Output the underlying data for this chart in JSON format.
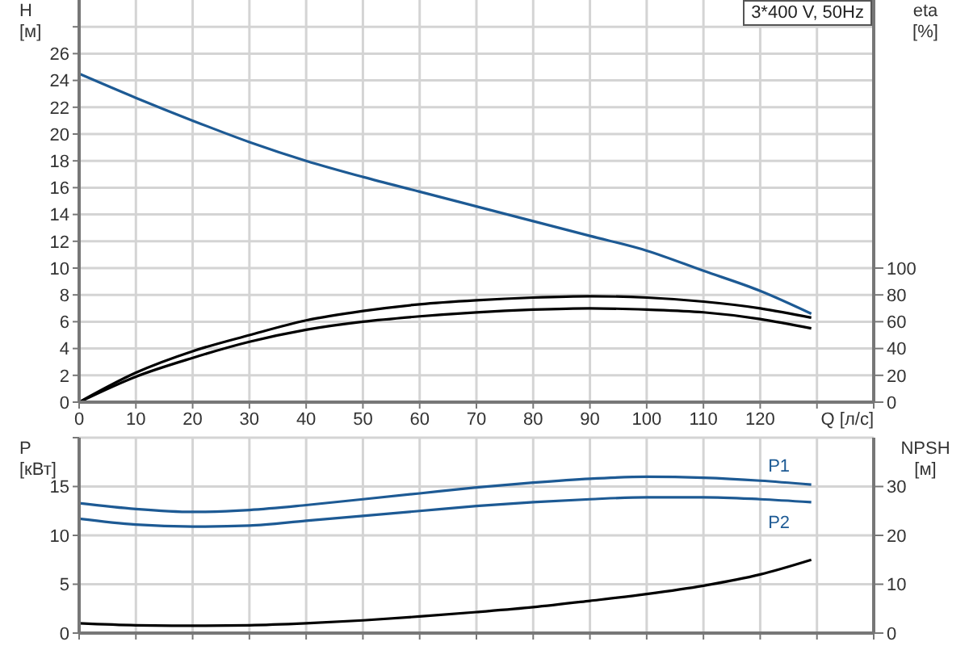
{
  "chart_data": [
    {
      "type": "line",
      "title": "3*400 V, 50Hz",
      "xlabel": "Q [л/с]",
      "ylabel": "H [м]",
      "y2label": "eta [%]",
      "x": [
        0,
        10,
        20,
        30,
        40,
        50,
        60,
        70,
        80,
        90,
        100,
        110,
        120,
        129
      ],
      "xlim": [
        0,
        140
      ],
      "xticks": [
        0,
        10,
        20,
        30,
        40,
        50,
        60,
        70,
        80,
        90,
        100,
        110,
        120,
        {
          "value": 130,
          "label": null
        },
        {
          "value": 140,
          "label": null
        }
      ],
      "ylim": [
        0,
        30
      ],
      "yticks": [
        0,
        2,
        4,
        6,
        8,
        10,
        12,
        14,
        16,
        18,
        20,
        22,
        24,
        26,
        {
          "value": 28,
          "label": null
        }
      ],
      "y2lim": [
        0,
        300
      ],
      "y2ticks": [
        0,
        20,
        40,
        60,
        80,
        100
      ],
      "grid": true,
      "legend": false,
      "marker": "none",
      "line_style": "solid",
      "series": [
        {
          "color": "#1d5a94",
          "values": [
            24.5,
            22.7,
            21,
            19.4,
            18,
            16.8,
            15.7,
            14.6,
            13.5,
            12.4,
            11.3,
            9.8,
            8.3,
            6.6
          ]
        },
        {
          "color": "#000000",
          "axis": "y2",
          "values": [
            0,
            22,
            38,
            50,
            61,
            68,
            73,
            76,
            78,
            79,
            78,
            75,
            70,
            63
          ]
        },
        {
          "color": "#000000",
          "axis": "y2",
          "values": [
            0,
            19,
            33,
            45,
            54,
            60,
            64,
            67,
            69,
            70,
            69,
            67,
            62,
            55
          ]
        }
      ]
    },
    {
      "type": "line",
      "ylabel": "P [кВт]",
      "y2label": "NPSH [м]",
      "x": [
        0,
        10,
        20,
        30,
        40,
        50,
        60,
        70,
        80,
        90,
        100,
        110,
        120,
        129
      ],
      "xlim": [
        0,
        140
      ],
      "xticks": [
        0,
        10,
        20,
        30,
        40,
        50,
        60,
        70,
        80,
        90,
        100,
        110,
        120,
        130,
        140
      ],
      "ylim": [
        0,
        20
      ],
      "yticks": [
        0,
        5,
        10,
        15,
        {
          "value": 20,
          "label": null
        }
      ],
      "y2lim": [
        0,
        40
      ],
      "y2ticks": [
        0,
        10,
        20,
        30
      ],
      "tick_labels": "y",
      "grid": true,
      "legend": false,
      "marker": "none",
      "line_style": "solid",
      "series": [
        {
          "name": "P1",
          "color": "#1d5a94",
          "values": [
            13.3,
            12.7,
            12.4,
            12.6,
            13.1,
            13.7,
            14.3,
            14.9,
            15.4,
            15.8,
            16.0,
            15.9,
            15.6,
            15.2
          ]
        },
        {
          "name": "P2",
          "color": "#1d5a94",
          "values": [
            11.7,
            11.1,
            10.9,
            11.0,
            11.5,
            12.0,
            12.5,
            13.0,
            13.4,
            13.7,
            13.9,
            13.9,
            13.7,
            13.4
          ]
        },
        {
          "color": "#000000",
          "axis": "y2",
          "values": [
            2.0,
            1.6,
            1.5,
            1.6,
            2.0,
            2.6,
            3.4,
            4.3,
            5.3,
            6.6,
            8.0,
            9.7,
            12.0,
            15.0
          ]
        }
      ]
    }
  ]
}
